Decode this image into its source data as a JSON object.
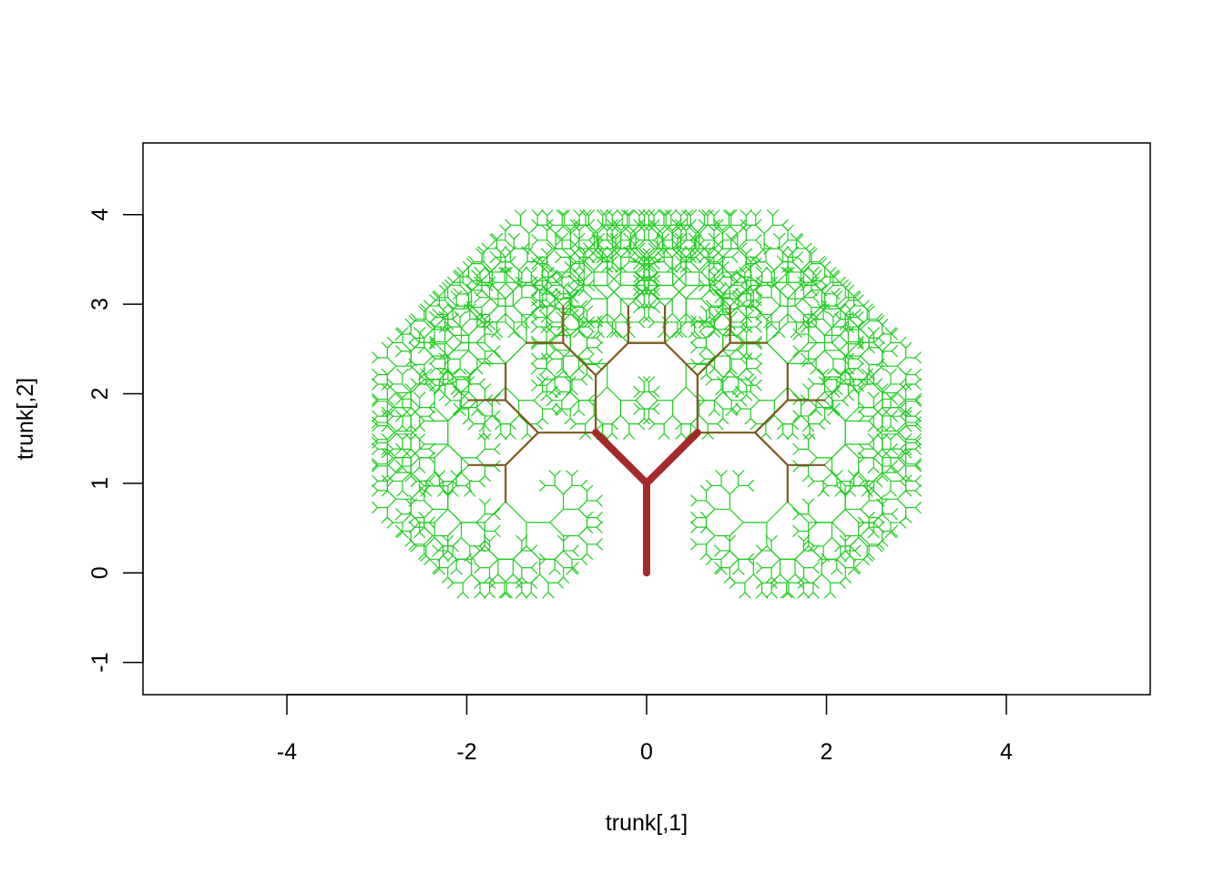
{
  "chart_data": {
    "type": "line",
    "title": "",
    "xlabel": "trunk[,1]",
    "ylabel": "trunk[,2]",
    "xlim": [
      -5.6,
      5.6
    ],
    "ylim": [
      -1.36,
      4.8
    ],
    "x_ticks": [
      -4,
      -2,
      0,
      2,
      4
    ],
    "x_tick_labels": [
      "-4",
      "-2",
      "0",
      "2",
      "4"
    ],
    "y_ticks": [
      -1,
      0,
      1,
      2,
      3,
      4
    ],
    "y_tick_labels": [
      "-1",
      "0",
      "1",
      "2",
      "3",
      "4"
    ],
    "grid": false,
    "legend": "none",
    "fractal": {
      "trunk": [
        [
          0,
          0
        ],
        [
          0,
          1
        ]
      ],
      "branch_angle_deg": 45,
      "length_ratio": 0.8,
      "depth": 11
    },
    "series": [
      {
        "color": "#A52A2A",
        "levels": [
          0,
          1
        ]
      },
      {
        "color": "#7B5A1E",
        "levels": [
          2,
          3,
          4
        ]
      },
      {
        "color": "#22CC22",
        "levels": [
          5,
          6,
          7,
          8,
          9,
          10,
          11
        ]
      }
    ]
  }
}
